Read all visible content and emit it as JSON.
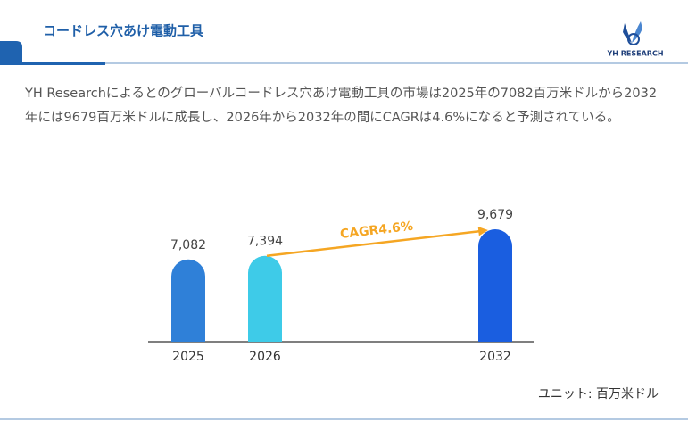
{
  "header": {
    "title": "コードレス穴あけ電動工具",
    "logo_text": "YH RESEARCH"
  },
  "description": "YH Researchによるとのグローバルコードレス穴あけ電動工具の市場は2025年の7082百万米ドルから2032年には9679百万米ドルに成長し、2026年から2032年の間にCAGRは4.6%になると予測されている。",
  "chart_data": {
    "type": "bar",
    "categories": [
      "2025",
      "2026",
      "2032"
    ],
    "values": [
      7082,
      7394,
      9679
    ],
    "value_labels": [
      "7,082",
      "7,394",
      "9,679"
    ],
    "colors": [
      "#2f80d8",
      "#3ecbe8",
      "#1a5ee0"
    ],
    "annotation": "CAGR4.6%",
    "annotation_color": "#f5a623",
    "unit_note": "ユニット: 百万米ドル"
  }
}
